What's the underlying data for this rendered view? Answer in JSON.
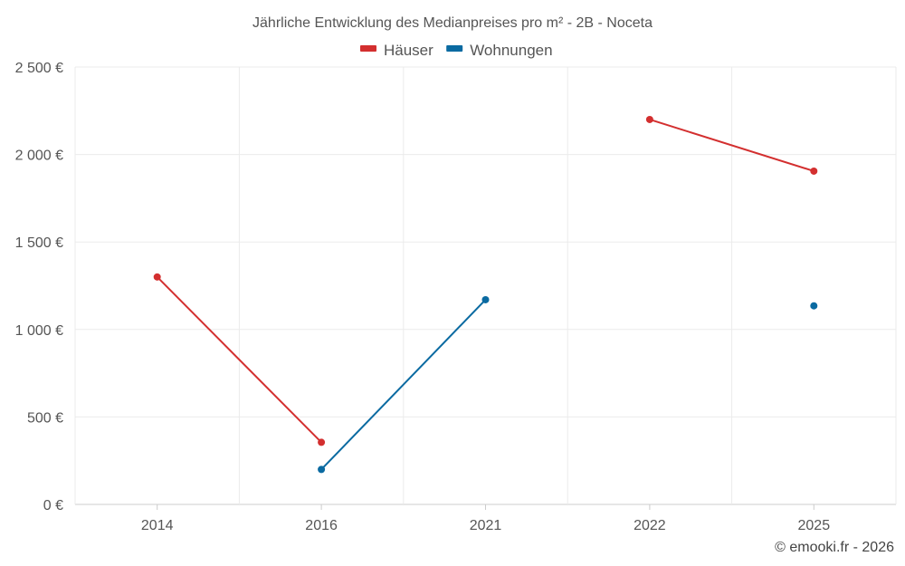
{
  "chart_data": {
    "type": "line",
    "title": "Jährliche Entwicklung des Medianpreises pro m² - 2B - Noceta",
    "categories": [
      "2014",
      "2016",
      "2021",
      "2022",
      "2025"
    ],
    "y_tick_labels": [
      "0 €",
      "500 €",
      "1 000 €",
      "1 500 €",
      "2 000 €",
      "2 500 €"
    ],
    "y_ticks": [
      0,
      500,
      1000,
      1500,
      2000,
      2500
    ],
    "ylim": [
      0,
      2500
    ],
    "grid": true,
    "legend_position": "top-center",
    "series": [
      {
        "name": "Häuser",
        "color": "#d32f2f",
        "values": [
          1300,
          355,
          null,
          2200,
          1905
        ]
      },
      {
        "name": "Wohnungen",
        "color": "#0a6aa1",
        "values": [
          null,
          200,
          1170,
          null,
          1135
        ]
      }
    ]
  },
  "credit": "© emooki.fr - 2026"
}
